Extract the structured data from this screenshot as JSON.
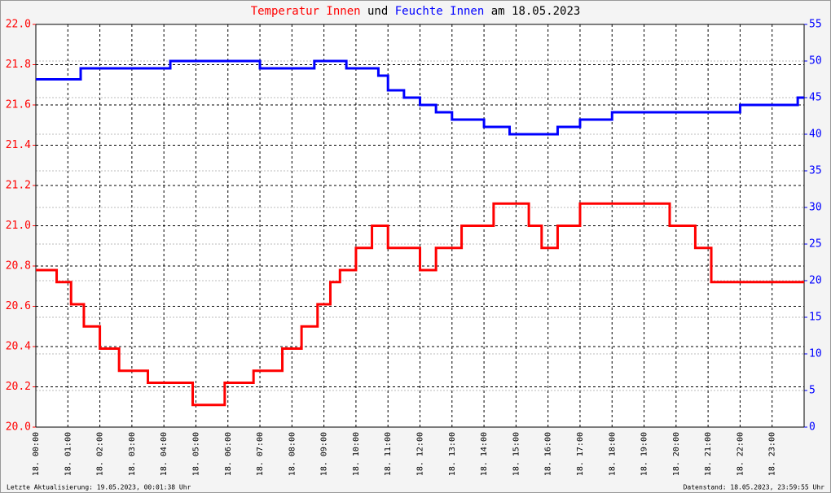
{
  "chart_data": {
    "type": "line",
    "title_parts": [
      {
        "text": "Temperatur Innen",
        "color": "#ff0000"
      },
      {
        "text": "und",
        "color": "#000000"
      },
      {
        "text": "Feuchte Innen",
        "color": "#0000ff"
      },
      {
        "text": "am 18.05.2023",
        "color": "#000000"
      }
    ],
    "footer_left": "Letzte Aktualisierung: 19.05.2023, 00:01:38 Uhr",
    "footer_right": "Datenstand: 18.05.2023, 23:59:55 Uhr",
    "xlim": [
      0,
      24
    ],
    "xticks": [
      {
        "value": 0,
        "label": "18. 00:00"
      },
      {
        "value": 1,
        "label": "18. 01:00"
      },
      {
        "value": 2,
        "label": "18. 02:00"
      },
      {
        "value": 3,
        "label": "18. 03:00"
      },
      {
        "value": 4,
        "label": "18. 04:00"
      },
      {
        "value": 5,
        "label": "18. 05:00"
      },
      {
        "value": 6,
        "label": "18. 06:00"
      },
      {
        "value": 7,
        "label": "18. 07:00"
      },
      {
        "value": 8,
        "label": "18. 08:00"
      },
      {
        "value": 9,
        "label": "18. 09:00"
      },
      {
        "value": 10,
        "label": "18. 10:00"
      },
      {
        "value": 11,
        "label": "18. 11:00"
      },
      {
        "value": 12,
        "label": "18. 12:00"
      },
      {
        "value": 13,
        "label": "18. 13:00"
      },
      {
        "value": 14,
        "label": "18. 14:00"
      },
      {
        "value": 15,
        "label": "18. 15:00"
      },
      {
        "value": 16,
        "label": "18. 16:00"
      },
      {
        "value": 17,
        "label": "18. 17:00"
      },
      {
        "value": 18,
        "label": "18. 18:00"
      },
      {
        "value": 19,
        "label": "18. 19:00"
      },
      {
        "value": 20,
        "label": "18. 20:00"
      },
      {
        "value": 21,
        "label": "18. 21:00"
      },
      {
        "value": 22,
        "label": "18. 22:00"
      },
      {
        "value": 23,
        "label": "18. 23:00"
      }
    ],
    "ylim": [
      20,
      22
    ],
    "yticks": [
      {
        "value": 20,
        "label": "20.0"
      },
      20.2,
      20.4,
      20.6,
      20.8,
      {
        "value": 21,
        "label": "21.0"
      },
      21.2,
      21.4,
      21.6,
      21.8,
      {
        "value": 22,
        "label": "22.0"
      }
    ],
    "y2lim": [
      0,
      55
    ],
    "y2ticks": [
      0,
      5,
      10,
      15,
      20,
      25,
      30,
      35,
      40,
      45,
      50,
      55
    ],
    "grid": true,
    "series": [
      {
        "name": "Temperatur Innen",
        "color": "#ff0000",
        "axis": "y",
        "x": [
          0,
          0.65,
          0.65,
          1.1,
          1.1,
          1.5,
          1.5,
          2,
          2,
          2.6,
          2.6,
          3.5,
          3.5,
          4.9,
          4.9,
          5.9,
          5.9,
          6.8,
          6.8,
          7.7,
          7.7,
          8.3,
          8.3,
          8.8,
          8.8,
          9.2,
          9.2,
          9.5,
          9.5,
          10,
          10,
          10.5,
          10.5,
          11,
          11,
          12,
          12,
          12.5,
          12.5,
          13.3,
          13.3,
          14.3,
          14.3,
          15.4,
          15.4,
          15.8,
          15.8,
          16.3,
          16.3,
          17,
          17,
          19.8,
          19.8,
          20.6,
          20.6,
          21.1,
          21.1,
          24
        ],
        "values": [
          20.78,
          20.78,
          20.72,
          20.72,
          20.61,
          20.61,
          20.5,
          20.5,
          20.39,
          20.39,
          20.28,
          20.28,
          20.22,
          20.22,
          20.11,
          20.11,
          20.22,
          20.22,
          20.28,
          20.28,
          20.39,
          20.39,
          20.5,
          20.5,
          20.61,
          20.61,
          20.72,
          20.72,
          20.78,
          20.78,
          20.89,
          20.89,
          21,
          21,
          20.89,
          20.89,
          20.78,
          20.78,
          20.89,
          20.89,
          21,
          21,
          21.11,
          21.11,
          21,
          21,
          20.89,
          20.89,
          21,
          21,
          21.11,
          21.11,
          21,
          21,
          20.89,
          20.89,
          20.72,
          20.72
        ]
      },
      {
        "name": "Feuchte Innen",
        "color": "#0000ff",
        "axis": "y2",
        "x": [
          0,
          1.4,
          1.4,
          4.2,
          4.2,
          7,
          7,
          8.7,
          8.7,
          9.7,
          9.7,
          10.7,
          10.7,
          11,
          11,
          11.5,
          11.5,
          12,
          12,
          12.5,
          12.5,
          13,
          13,
          14,
          14,
          14.8,
          14.8,
          16.3,
          16.3,
          17,
          17,
          18,
          18,
          22,
          22,
          23.8,
          23.8,
          24
        ],
        "values": [
          47.5,
          47.5,
          49,
          49,
          50,
          50,
          49,
          49,
          50,
          50,
          49,
          49,
          48,
          48,
          46,
          46,
          45,
          45,
          44,
          44,
          43,
          43,
          42,
          42,
          41,
          41,
          40,
          40,
          41,
          41,
          42,
          42,
          43,
          43,
          44,
          44,
          45,
          45
        ]
      }
    ]
  }
}
